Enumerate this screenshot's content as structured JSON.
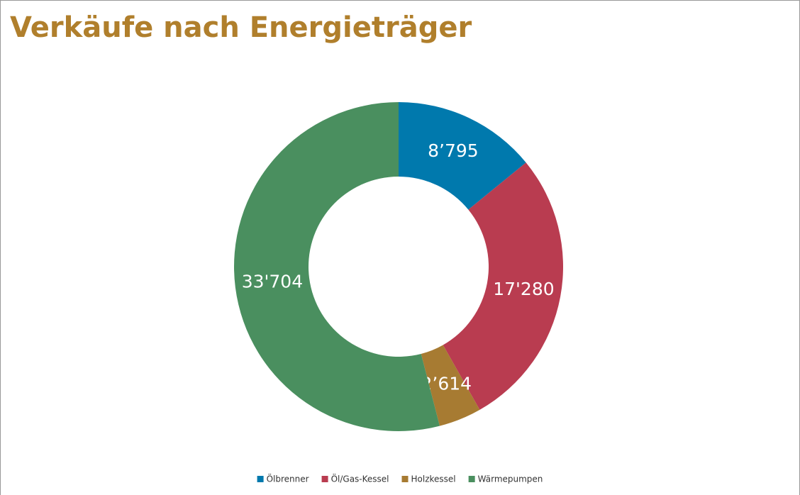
{
  "chart_data": {
    "type": "donut",
    "title": "Verkäufe nach Energieträger",
    "categories": [
      "Ölbrenner",
      "Öl/Gas-Kessel",
      "Holzkessel",
      "Wärmepumpen"
    ],
    "values": [
      8795,
      17280,
      2614,
      33704
    ],
    "value_labels": [
      "8’795",
      "17'280",
      "2’614",
      "33'704"
    ],
    "colors": [
      "#0079ad",
      "#b93c50",
      "#a77b32",
      "#4a8f5f"
    ],
    "legend": "bottom"
  }
}
